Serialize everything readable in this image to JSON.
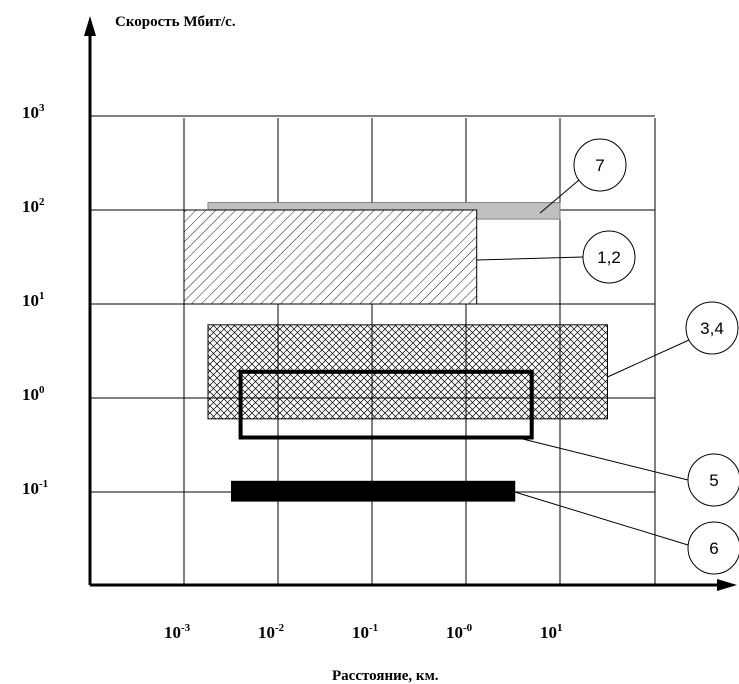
{
  "chart_data": {
    "type": "range-diagram",
    "title": "",
    "ylabel": "Скорость Мбит/с.",
    "xlabel": "Расстояние, км.",
    "y_scale": "log",
    "x_scale": "log",
    "y_ticks": [
      {
        "base": "10",
        "exp": "3",
        "value": 1000
      },
      {
        "base": "10",
        "exp": "2",
        "value": 100
      },
      {
        "base": "10",
        "exp": "1",
        "value": 10
      },
      {
        "base": "10",
        "exp": "0",
        "value": 1
      },
      {
        "base": "10",
        "exp": "-1",
        "value": 0.1
      }
    ],
    "x_ticks": [
      {
        "base": "10",
        "exp": "-3",
        "value": 0.001
      },
      {
        "base": "10",
        "exp": "-2",
        "value": 0.01
      },
      {
        "base": "10",
        "exp": "-1",
        "value": 0.1
      },
      {
        "base": "10",
        "exp": "-0",
        "value": 1
      },
      {
        "base": "10",
        "exp": "1",
        "value": 10
      }
    ],
    "x_range": [
      0.0001,
      1000
    ],
    "y_range": [
      0.01,
      1000
    ],
    "grid": true,
    "regions": [
      {
        "label": "7",
        "fill": "solid-gray",
        "x": [
          0.0018,
          10
        ],
        "y": [
          80,
          120
        ]
      },
      {
        "label": "1,2",
        "fill": "diagonal-hatch",
        "x": [
          0.001,
          1.3
        ],
        "y": [
          10,
          100
        ]
      },
      {
        "label": "3,4",
        "fill": "crosshatch",
        "x": [
          0.0018,
          32
        ],
        "y": [
          0.6,
          6
        ]
      },
      {
        "label": "5",
        "fill": "thick-outline",
        "x": [
          0.004,
          5
        ],
        "y": [
          0.38,
          1.9
        ]
      },
      {
        "label": "6",
        "fill": "solid-black",
        "x": [
          0.0032,
          3.3
        ],
        "y": [
          0.08,
          0.13
        ]
      }
    ],
    "colors": {
      "axis": "#000000",
      "grid": "#000000",
      "region_gray": "#c0c0c0",
      "region_black": "#000000"
    }
  }
}
